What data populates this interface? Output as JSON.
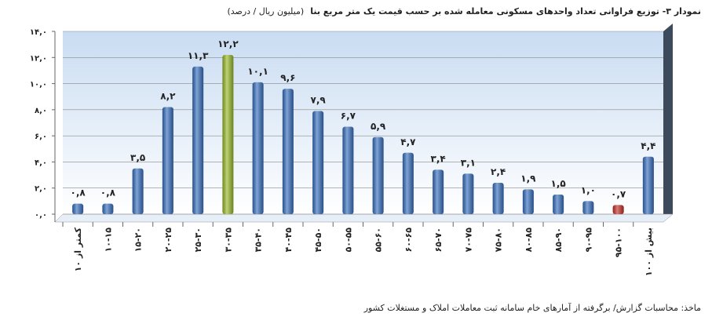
{
  "chart_data": {
    "type": "bar",
    "title": "نمودار ۳- توزیع فراوانی تعداد واحدهای مسکونی معامله شده بر حسب قیمت یک متر مربع بنا",
    "unit": "(میلیون ریال / درصد)",
    "source": "ماخذ: محاسبات گزارش/ برگرفته از آمارهای خام سامانه ثبت معاملات املاک و مستغلات کشور",
    "categories": [
      "کمتر از ۱۰",
      "۱۰-۱۵",
      "۱۵-۲۰",
      "۲۰-۲۵",
      "۲۵-۳۰",
      "۳۰-۳۵",
      "۳۵-۴۰",
      "۴۰-۴۵",
      "۴۵-۵۰",
      "۵۰-۵۵",
      "۵۵-۶۰",
      "۶۰-۶۵",
      "۶۵-۷۰",
      "۷۰-۷۵",
      "۷۵-۸۰",
      "۸۰-۸۵",
      "۸۵-۹۰",
      "۹۰-۹۵",
      "۹۵-۱۰۰",
      "بیش از ۱۰۰"
    ],
    "values": [
      0.8,
      0.8,
      3.5,
      8.2,
      11.3,
      12.2,
      10.1,
      9.6,
      7.9,
      6.7,
      5.9,
      4.7,
      3.4,
      3.1,
      2.4,
      1.9,
      1.5,
      1.0,
      0.7,
      4.4
    ],
    "value_labels": [
      "۰,۸",
      "۰,۸",
      "۳,۵",
      "۸,۲",
      "۱۱,۳",
      "۱۲,۲",
      "۱۰,۱",
      "۹,۶",
      "۷,۹",
      "۶,۷",
      "۵,۹",
      "۴,۷",
      "۳,۴",
      "۳,۱",
      "۲,۴",
      "۱,۹",
      "۱,۵",
      "۱,۰",
      "۰,۷",
      "۴,۴"
    ],
    "colors": [
      "#3b73c2",
      "#3b73c2",
      "#3b73c2",
      "#3b73c2",
      "#3b73c2",
      "#9cbd2e",
      "#3b73c2",
      "#3b73c2",
      "#3b73c2",
      "#3b73c2",
      "#3b73c2",
      "#3b73c2",
      "#3b73c2",
      "#3b73c2",
      "#3b73c2",
      "#3b73c2",
      "#3b73c2",
      "#3b73c2",
      "#c8332b",
      "#3b73c2"
    ],
    "ylim": [
      0,
      14
    ],
    "yticks": [
      {
        "value": 0,
        "label": "۰,۰"
      },
      {
        "value": 2,
        "label": "۲,۰"
      },
      {
        "value": 4,
        "label": "۴,۰"
      },
      {
        "value": 6,
        "label": "۶,۰"
      },
      {
        "value": 8,
        "label": "۸,۰"
      },
      {
        "value": 10,
        "label": "۱۰,۰"
      },
      {
        "value": 12,
        "label": "۱۲,۰"
      },
      {
        "value": 14,
        "label": "۱۴,۰"
      }
    ],
    "grid": true
  }
}
